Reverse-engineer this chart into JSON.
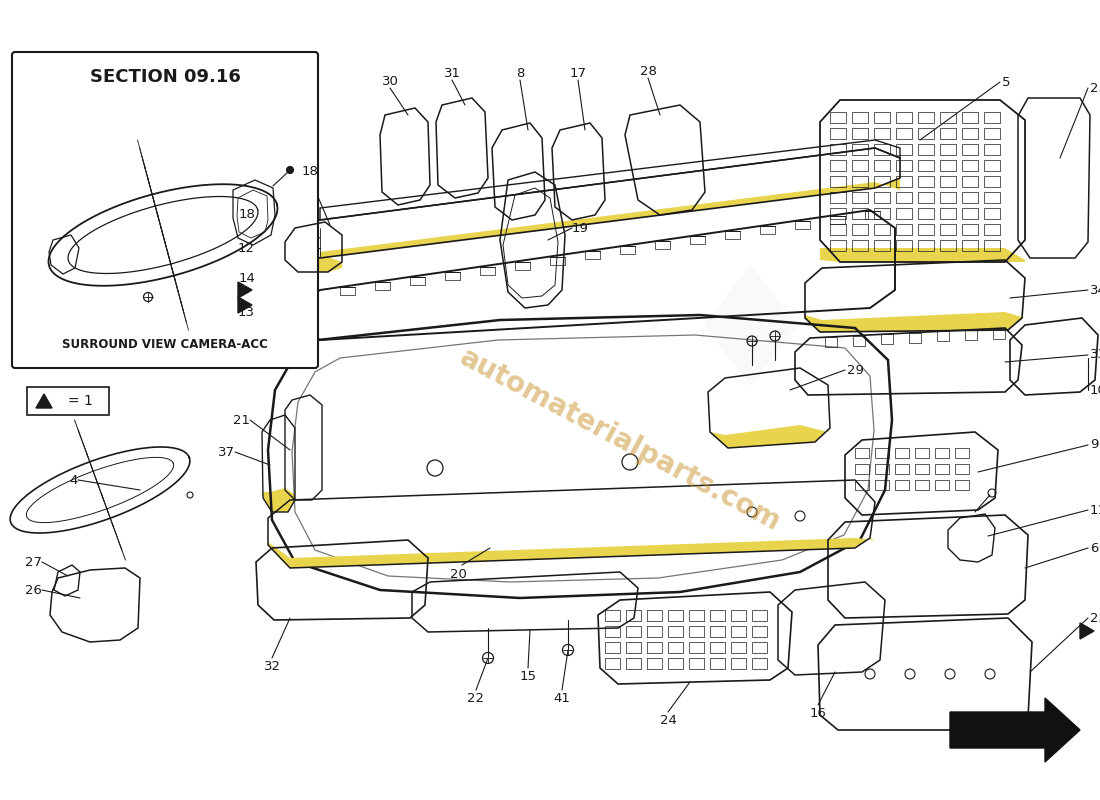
{
  "background_color": "#ffffff",
  "line_color": "#1a1a1a",
  "watermark_color": "#c8922a",
  "watermark_text": "automaterialparts.com",
  "section_title": "SECTION 09.16",
  "subsection": "SURROUND VIEW CAMERA-ACC",
  "fig_width": 11.0,
  "fig_height": 8.0,
  "dpi": 100,
  "yellow_accent": "#e8d44d",
  "gray_part": "#d0d0d0"
}
